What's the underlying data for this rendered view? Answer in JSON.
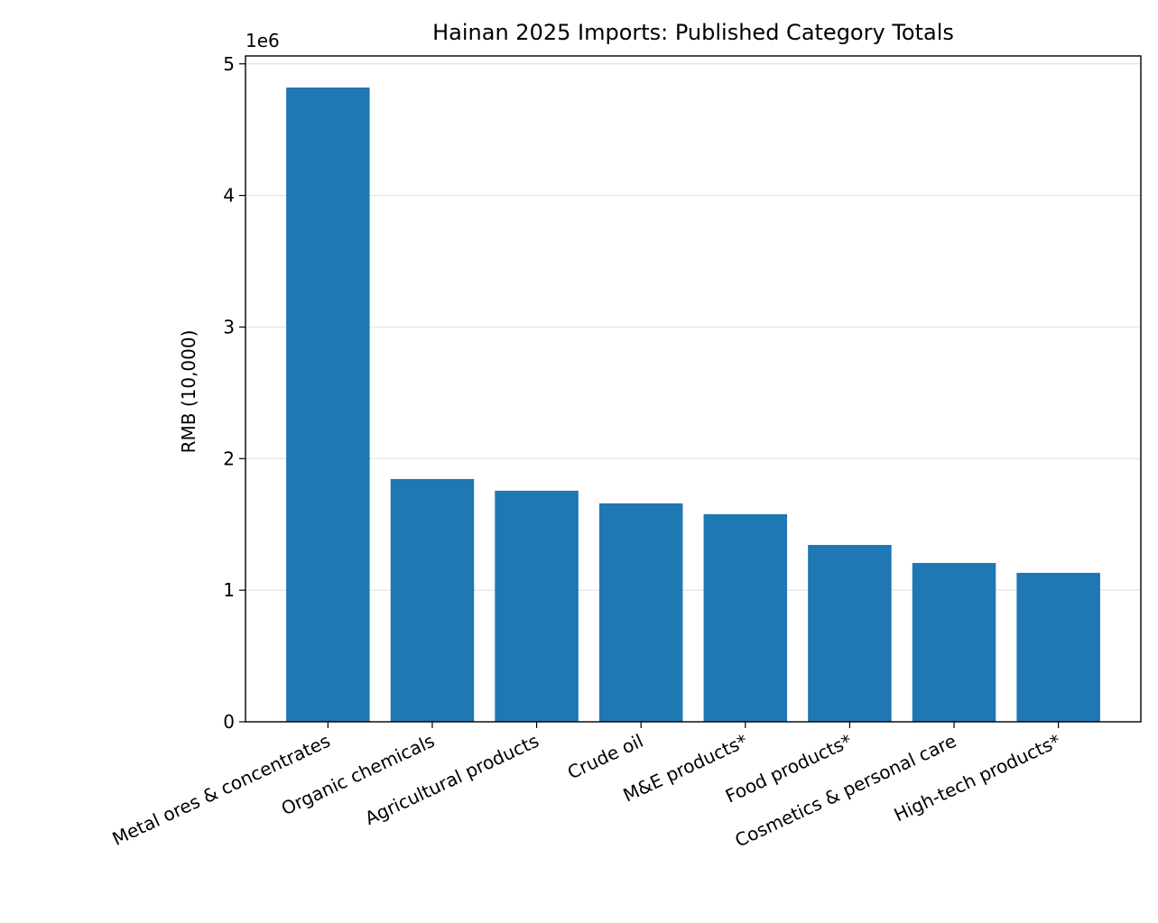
{
  "chart_data": {
    "type": "bar",
    "title": "Hainan 2025 Imports: Published Category Totals",
    "y_label": "RMB (10,000)",
    "y_offset_label": "1e6",
    "categories": [
      "Metal ores & concentrates",
      "Organic chemicals",
      "Agricultural products",
      "Crude oil",
      "M&E products*",
      "Food products*",
      "Cosmetics & personal care",
      "High-tech products*"
    ],
    "values": [
      4820000,
      1845000,
      1756000,
      1660000,
      1578000,
      1344000,
      1207000,
      1132000
    ],
    "color": "#1f77b4",
    "ylim": [
      0,
      5060000
    ],
    "yticks": [
      0,
      {
        "value": 1000000,
        "label": "1"
      },
      {
        "value": 2000000,
        "label": "2"
      },
      {
        "value": 3000000,
        "label": "3"
      },
      {
        "value": 4000000,
        "label": "4"
      },
      {
        "value": 5000000,
        "label": "5"
      }
    ],
    "grid": true
  }
}
